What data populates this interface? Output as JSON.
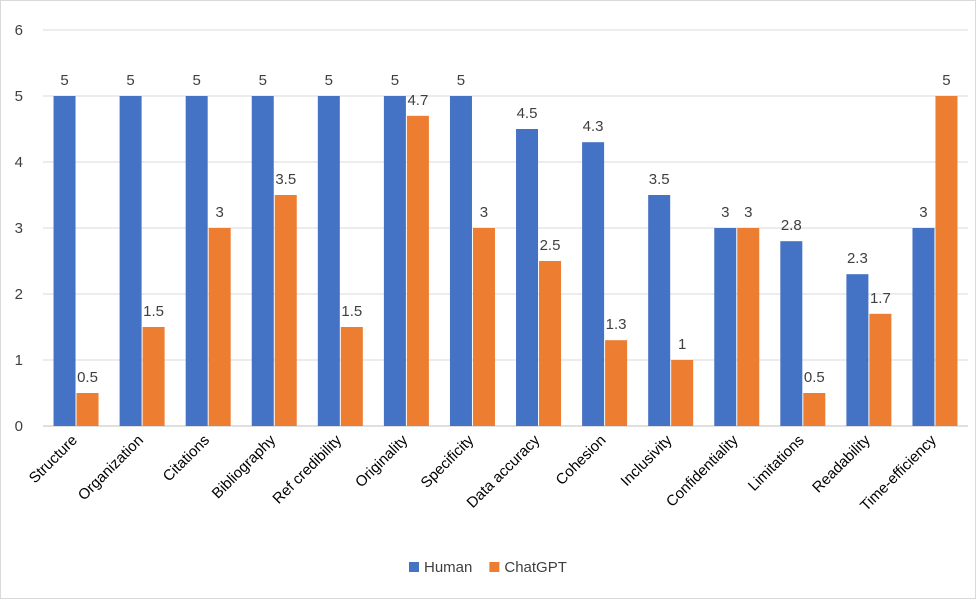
{
  "chart_data": {
    "type": "bar",
    "title": "",
    "xlabel": "",
    "ylabel": "",
    "ylim": [
      0,
      6
    ],
    "yticks": [
      0,
      1,
      2,
      3,
      4,
      5,
      6
    ],
    "grid": true,
    "legend_position": "bottom",
    "categories": [
      "Structure",
      "Organization",
      "Citations",
      "Bibliography",
      "Ref credibility",
      "Originality",
      "Specificity",
      "Data accuracy",
      "Cohesion",
      "Inclusivity",
      "Confidentiality",
      "Limitations",
      "Readability",
      "Time-efficiency"
    ],
    "series": [
      {
        "name": "Human",
        "color": "#4472c4",
        "values": [
          5,
          5,
          5,
          5,
          5,
          5,
          5,
          4.5,
          4.3,
          3.5,
          3,
          2.8,
          2.3,
          3
        ]
      },
      {
        "name": "ChatGPT",
        "color": "#ed7d31",
        "values": [
          0.5,
          1.5,
          3,
          3.5,
          1.5,
          4.7,
          3,
          2.5,
          1.3,
          1,
          3,
          0.5,
          1.7,
          5
        ]
      }
    ]
  }
}
